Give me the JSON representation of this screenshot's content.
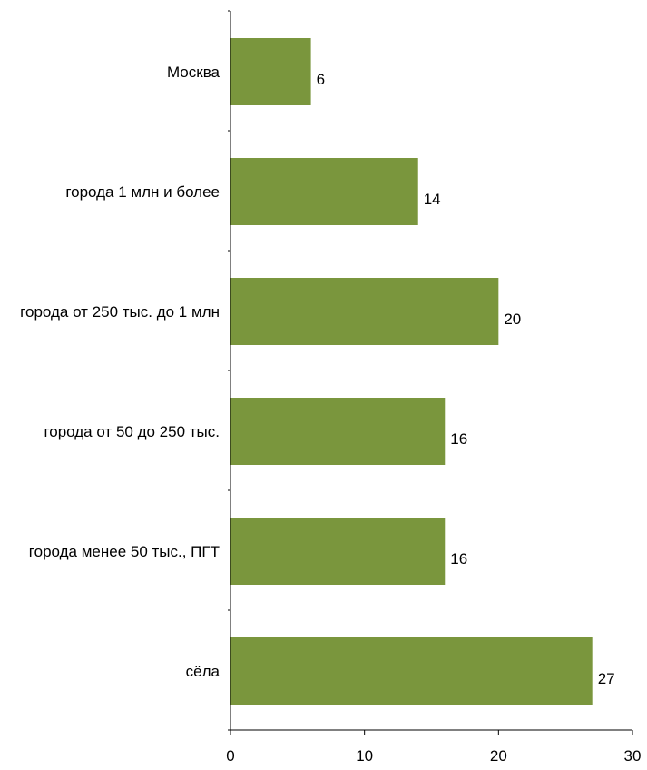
{
  "chart_data": {
    "type": "bar",
    "orientation": "horizontal",
    "categories": [
      "Москва",
      "города 1 млн и более",
      "города от 250 тыс. до 1 млн",
      "города от 50 до 250 тыс.",
      "города менее 50 тыс., ПГТ",
      "сёла"
    ],
    "values": [
      6,
      14,
      20,
      16,
      16,
      27
    ],
    "value_labels": [
      "6",
      "14",
      "20",
      "16",
      "16",
      "27"
    ],
    "xlim": [
      0,
      30
    ],
    "xticks": [
      0,
      10,
      20,
      30
    ],
    "xtick_labels": [
      "0",
      "10",
      "20",
      "30"
    ],
    "title": "",
    "xlabel": "",
    "ylabel": "",
    "grid": false,
    "legend": "none",
    "bar_color": "#7a963d"
  }
}
